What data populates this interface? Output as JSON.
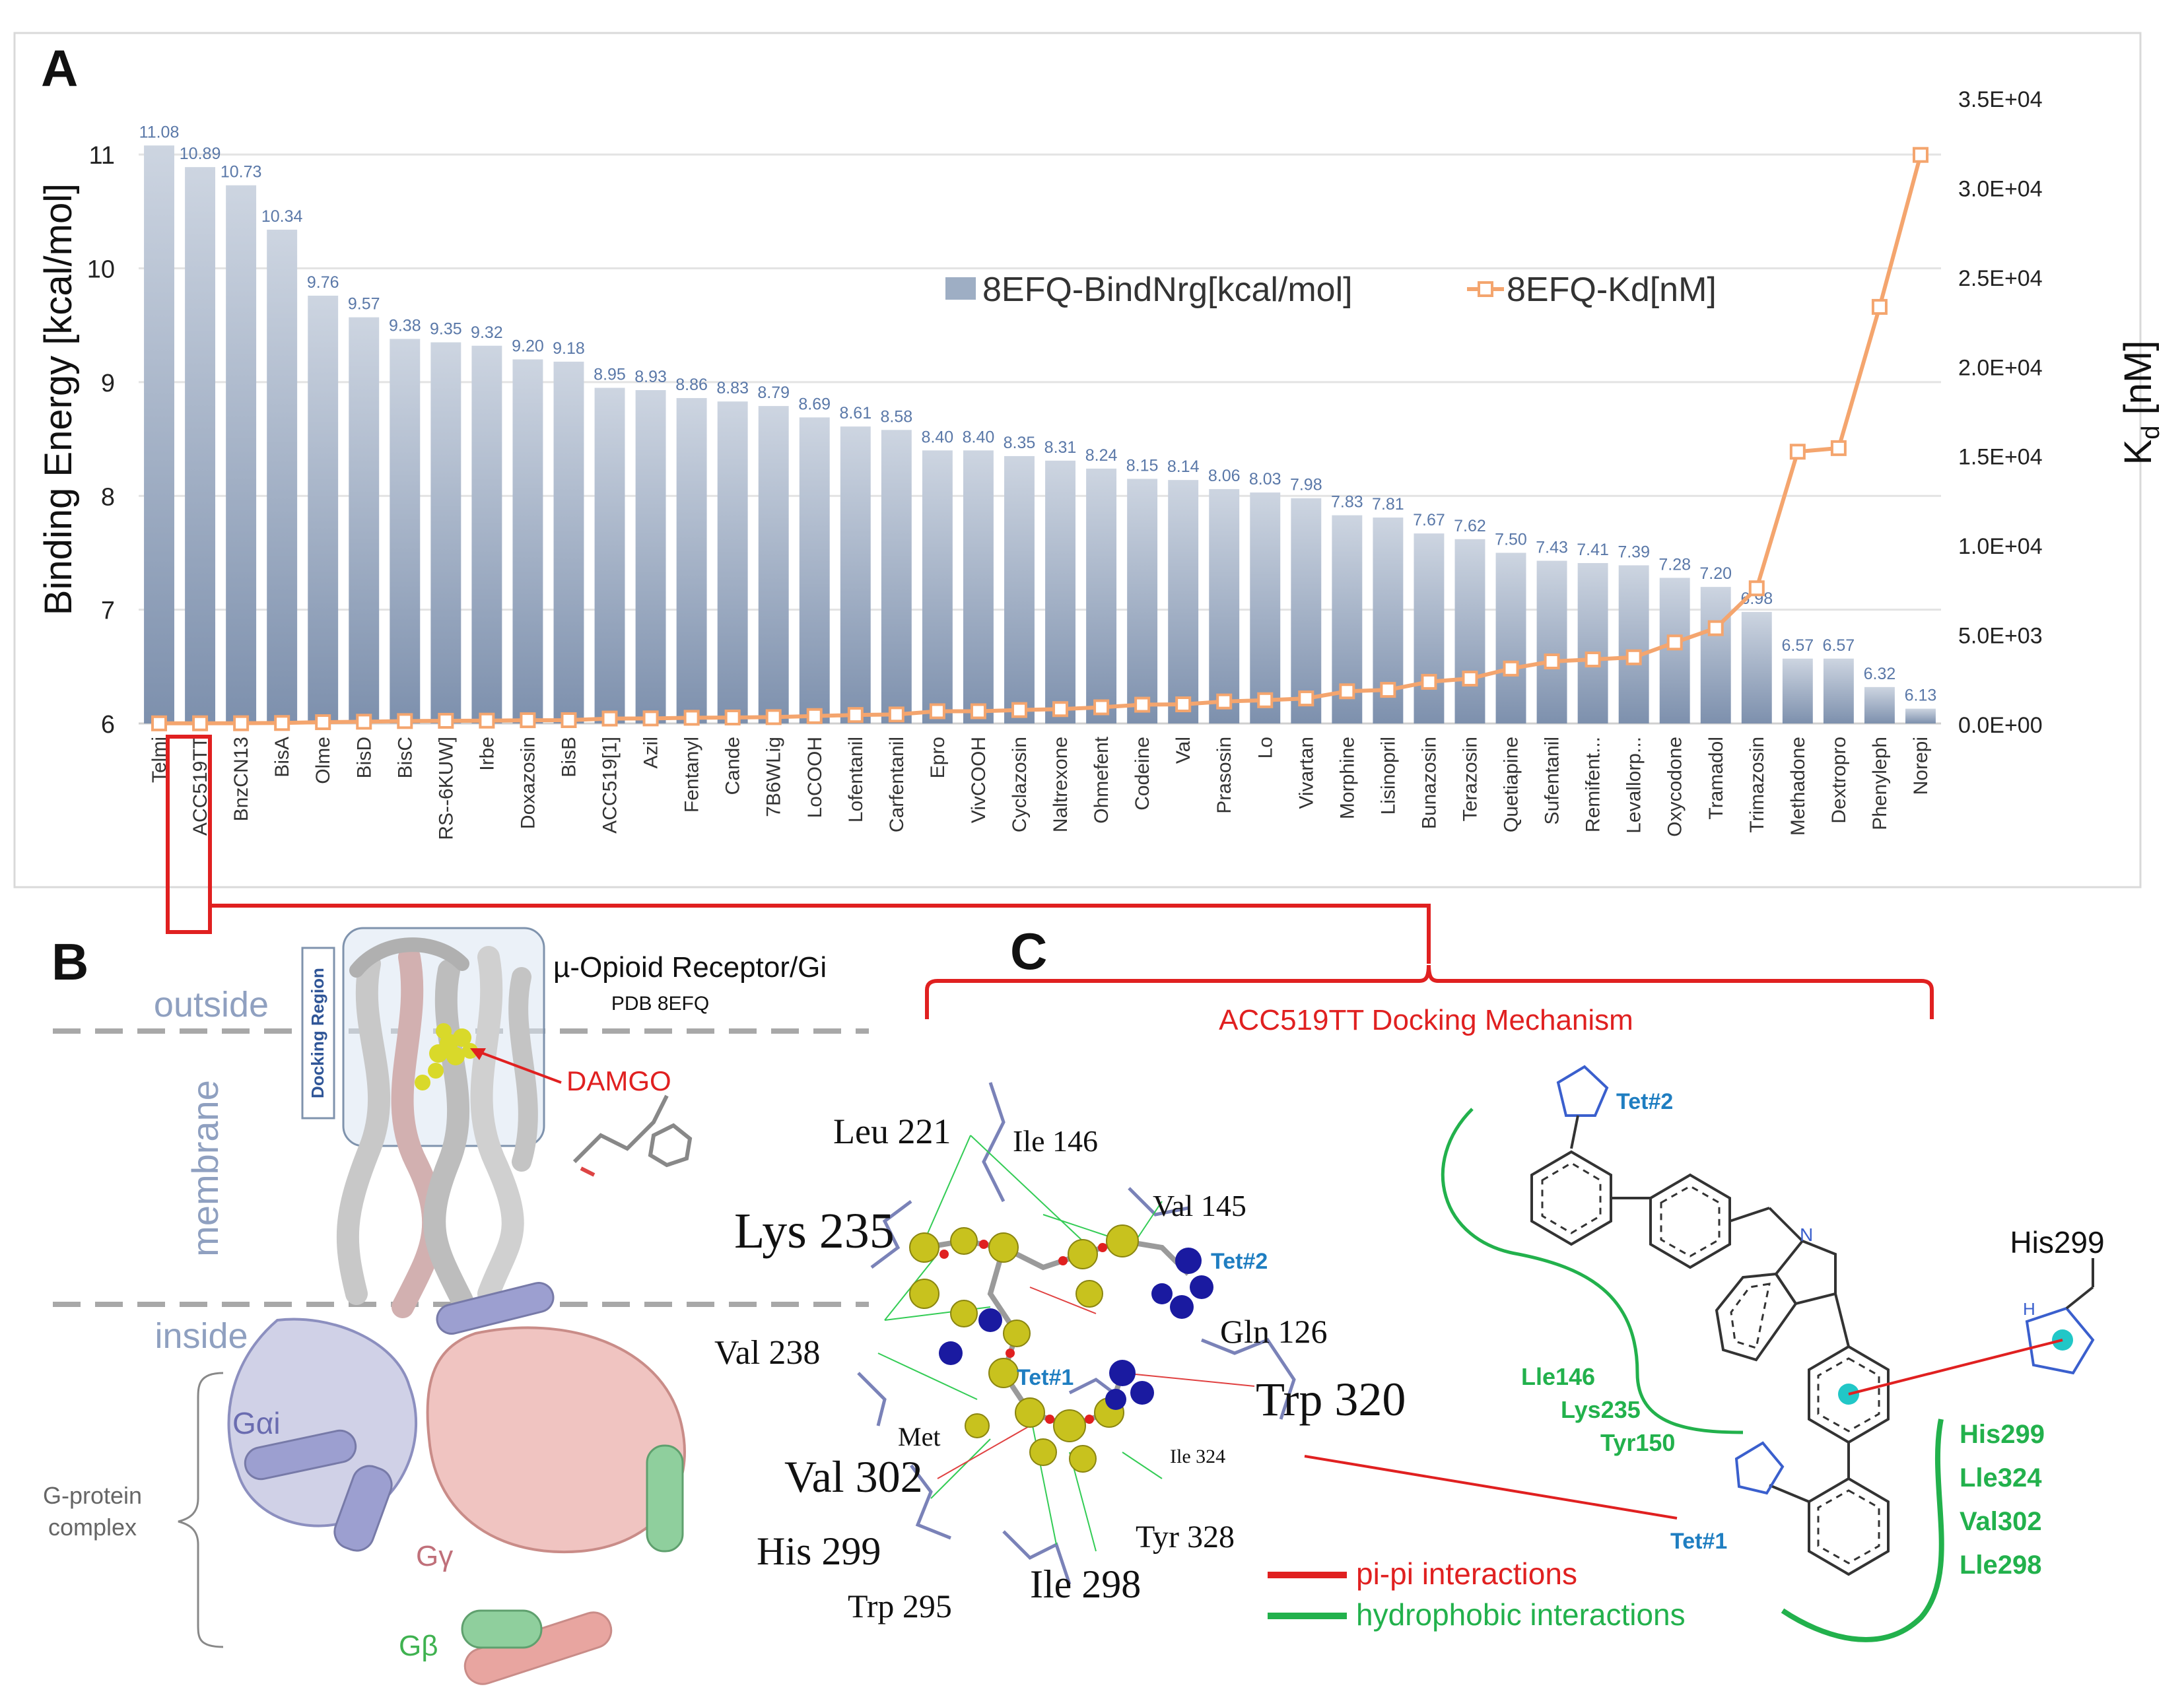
{
  "panel_labels": {
    "a": "A",
    "b": "B",
    "c": "C"
  },
  "chart_data": {
    "type": "bar+line",
    "categories": [
      "Telmi",
      "ACC519TT",
      "BnzCN13",
      "BisA",
      "Olme",
      "BisD",
      "BisC",
      "RS--6KUW]",
      "Irbe",
      "Doxazosin",
      "BisB",
      "ACC519[1]",
      "Azil",
      "Fentanyl",
      "Cande",
      "7B6WLig",
      "LoCOOH",
      "Lofentanil",
      "Carfentanil",
      "Epro",
      "VivCOOH",
      "Cyclazosin",
      "Naltrexone",
      "Ohmefent",
      "Codeine",
      "Val",
      "Prasosin",
      "Lo",
      "Vivartan",
      "Morphine",
      "Lisinopril",
      "Bunazosin",
      "Terazosin",
      "Quetiapine",
      "Sufentanil",
      "Remifent...",
      "Levallorp...",
      "Oxycodone",
      "Tramadol",
      "Trimazosin",
      "Methadone",
      "Dextropro",
      "Phenyleph",
      "Norepi"
    ],
    "series": [
      {
        "name": "8EFQ-BindNrg[kcal/mol]",
        "axis": "left",
        "kind": "bar",
        "color": "#9eaec4",
        "values": [
          11.08,
          10.89,
          10.73,
          10.34,
          9.76,
          9.57,
          9.38,
          9.35,
          9.32,
          9.2,
          9.18,
          8.95,
          8.93,
          8.86,
          8.83,
          8.79,
          8.69,
          8.61,
          8.58,
          8.4,
          8.4,
          8.35,
          8.31,
          8.24,
          8.15,
          8.14,
          8.06,
          8.03,
          7.98,
          7.83,
          7.81,
          7.67,
          7.62,
          7.5,
          7.43,
          7.41,
          7.39,
          7.28,
          7.2,
          6.98,
          6.57,
          6.57,
          6.32,
          6.13
        ],
        "labels": [
          "11.08",
          "10.89",
          "10.73",
          "10.34",
          "9.76",
          "9.57",
          "9.38",
          "9.35",
          "9.32",
          "9.20",
          "9.18",
          "8.95",
          "8.93",
          "8.86",
          "8.83",
          "8.79",
          "8.69",
          "8.61",
          "8.58",
          "8.40",
          "8.40",
          "8.35",
          "8.31",
          "8.24",
          "8.15",
          "8.14",
          "8.06",
          "8.03",
          "7.98",
          "7.83",
          "7.81",
          "7.67",
          "7.62",
          "7.50",
          "7.43",
          "7.41",
          "7.39",
          "7.28",
          "7.20",
          "6.98",
          "6.57",
          "6.57",
          "6.32",
          "6.13"
        ]
      },
      {
        "name": "8EFQ-Kd[nM]",
        "axis": "right",
        "kind": "line",
        "color": "#f4a56e",
        "values": [
          7,
          10,
          13,
          26,
          72,
          98,
          134,
          149,
          158,
          181,
          185,
          274,
          283,
          318,
          334,
          354,
          414,
          474,
          502,
          684,
          684,
          752,
          803,
          904,
          1050,
          1070,
          1230,
          1300,
          1400,
          1800,
          1880,
          2330,
          2510,
          3070,
          3470,
          3580,
          3700,
          4530,
          5330,
          7560,
          15200,
          15400,
          23300,
          31800
        ]
      }
    ],
    "ylabel": "Binding Energy [kcal/mol]",
    "ylim": [
      6,
      11.5
    ],
    "yticks": [
      "6",
      "7",
      "8",
      "9",
      "10",
      "11"
    ],
    "y2label_main": "K",
    "y2label_sub": "d",
    "y2label_unit": " [nM]",
    "y2lim": [
      0,
      35000
    ],
    "y2ticks": [
      "0.0E+00",
      "5.0E+03",
      "1.0E+04",
      "1.5E+04",
      "2.0E+04",
      "2.5E+04",
      "3.0E+04",
      "3.5E+04"
    ],
    "legend": {
      "bar": "8EFQ-BindNrg[kcal/mol]",
      "line": "8EFQ-Kd[nM]"
    },
    "grid": true
  },
  "panel_b": {
    "outside": "outside",
    "membrane": "membrane",
    "inside": "inside",
    "docking_region": "Docking Region",
    "receptor_title": "µ-Opioid Receptor/Gi",
    "pdb": "PDB 8EFQ",
    "damgo": "DAMGO",
    "g_alpha": "Gαi",
    "g_gamma": "Gγ",
    "g_beta": "Gβ",
    "g_protein_1": "G-protein",
    "g_protein_2": "complex"
  },
  "panel_c": {
    "title": "ACC519TT Docking Mechanism",
    "residues": {
      "leu221": "Leu 221",
      "ile146": "Ile 146",
      "val145": "Val 145",
      "lys235": "Lys 235",
      "val238": "Val 238",
      "gln126": "Gln 126",
      "trp320": "Trp 320",
      "met": "Met",
      "val302": "Val 302",
      "ile324": "Ile 324",
      "tyr328": "Tyr 328",
      "his299": "His 299",
      "ile298": "Ile 298",
      "trp295": "Trp 295"
    },
    "tet1": "Tet#1",
    "tet2": "Tet#2",
    "legend_pi": "pi-pi interactions",
    "legend_hydro": "hydrophobic interactions",
    "schematic": {
      "tet2": "Tet#2",
      "tet1": "Tet#1",
      "his299": "His299",
      "left_group": [
        "Lle146",
        "Lys235",
        "Tyr150"
      ],
      "right_group": [
        "His299",
        "Lle324",
        "Val302",
        "Lle298"
      ],
      "n_plus": "N",
      "hn": "H"
    }
  }
}
